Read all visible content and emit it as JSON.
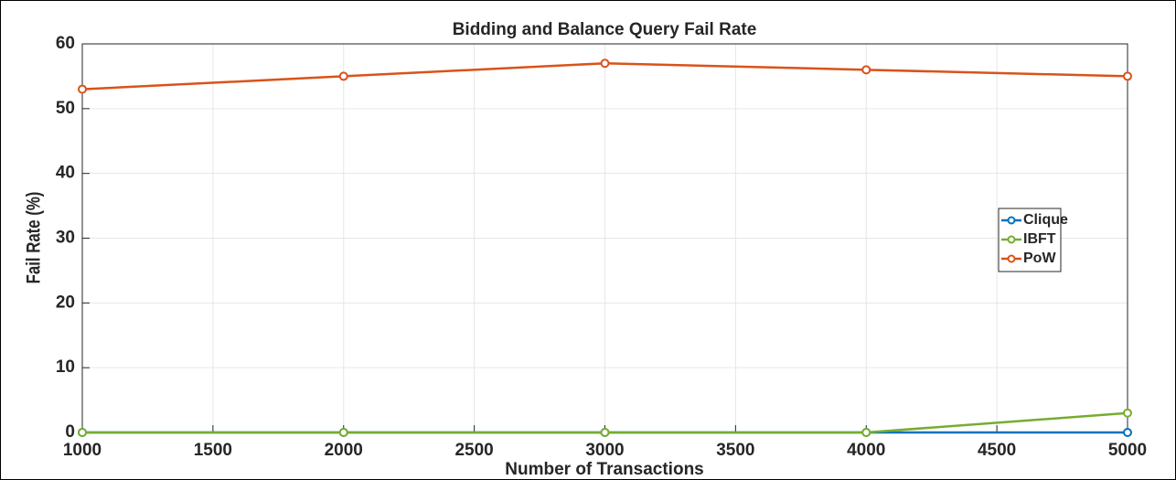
{
  "chart_data": {
    "type": "line",
    "title": "Bidding and Balance Query Fail Rate",
    "xlabel": "Number of Transactions",
    "ylabel": "Fail Rate (%)",
    "x": [
      1000,
      2000,
      3000,
      4000,
      5000
    ],
    "series": [
      {
        "name": "Clique",
        "color": "#0072bd",
        "values": [
          0,
          0,
          0,
          0,
          0
        ]
      },
      {
        "name": "IBFT",
        "color": "#77ac30",
        "values": [
          0,
          0,
          0,
          0,
          3
        ]
      },
      {
        "name": "PoW",
        "color": "#d95319",
        "values": [
          53,
          55,
          57,
          56,
          55
        ]
      }
    ],
    "xlim": [
      1000,
      5000
    ],
    "xticks": [
      1000,
      1500,
      2000,
      2500,
      3000,
      3500,
      4000,
      4500,
      5000
    ],
    "ylim": [
      0,
      60
    ],
    "yticks": [
      0,
      10,
      20,
      30,
      40,
      50,
      60
    ],
    "grid": true,
    "legend": "right"
  }
}
